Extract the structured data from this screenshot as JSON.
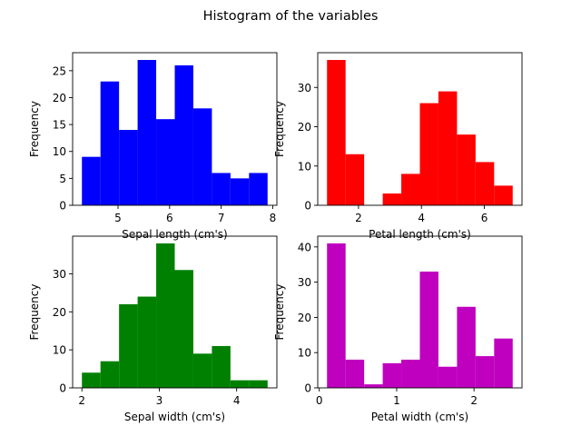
{
  "title": "Histogram of the variables",
  "chart_data": [
    {
      "type": "bar",
      "subtype": "histogram",
      "color": "#0000ff",
      "xlabel": "Sepal length (cm's)",
      "ylabel": "Frequency",
      "bin_edges": [
        4.3,
        4.66,
        5.02,
        5.38,
        5.74,
        6.1,
        6.46,
        6.82,
        7.18,
        7.54,
        7.9
      ],
      "values": [
        9,
        23,
        14,
        27,
        16,
        26,
        18,
        6,
        5,
        6
      ],
      "xlim": [
        4.12,
        8.08
      ],
      "ylim": [
        0,
        28.35
      ],
      "xticks": [
        5,
        6,
        7,
        8
      ],
      "yticks": [
        0,
        5,
        10,
        15,
        20,
        25
      ],
      "grid": false
    },
    {
      "type": "bar",
      "subtype": "histogram",
      "color": "#ff0000",
      "xlabel": "Petal length (cm's)",
      "ylabel": "Frequency",
      "bin_edges": [
        1.0,
        1.59,
        2.18,
        2.77,
        3.36,
        3.95,
        4.54,
        5.13,
        5.72,
        6.31,
        6.9
      ],
      "values": [
        37,
        13,
        0,
        3,
        8,
        26,
        29,
        18,
        11,
        5
      ],
      "xlim": [
        0.705,
        7.195
      ],
      "ylim": [
        0,
        38.85
      ],
      "xticks": [
        2,
        4,
        6
      ],
      "yticks": [
        0,
        10,
        20,
        30
      ],
      "grid": false
    },
    {
      "type": "bar",
      "subtype": "histogram",
      "color": "#008000",
      "xlabel": "Sepal width (cm's)",
      "ylabel": "Frequency",
      "bin_edges": [
        2.0,
        2.24,
        2.48,
        2.72,
        2.96,
        3.2,
        3.44,
        3.68,
        3.92,
        4.16,
        4.4
      ],
      "values": [
        4,
        7,
        22,
        24,
        38,
        31,
        9,
        11,
        2,
        2
      ],
      "xlim": [
        1.88,
        4.52
      ],
      "ylim": [
        0,
        39.9
      ],
      "xticks": [
        2,
        3,
        4
      ],
      "yticks": [
        0,
        10,
        20,
        30
      ],
      "grid": false
    },
    {
      "type": "bar",
      "subtype": "histogram",
      "color": "#bf00bf",
      "xlabel": "Petal width (cm's)",
      "ylabel": "Frequency",
      "bin_edges": [
        0.1,
        0.34,
        0.58,
        0.82,
        1.06,
        1.3,
        1.54,
        1.78,
        2.02,
        2.26,
        2.5
      ],
      "values": [
        41,
        8,
        1,
        7,
        8,
        33,
        6,
        23,
        9,
        14
      ],
      "xlim": [
        -0.02,
        2.62
      ],
      "ylim": [
        0,
        43.05
      ],
      "xticks": [
        0,
        1,
        2
      ],
      "yticks": [
        0,
        10,
        20,
        30,
        40
      ],
      "grid": false
    }
  ]
}
